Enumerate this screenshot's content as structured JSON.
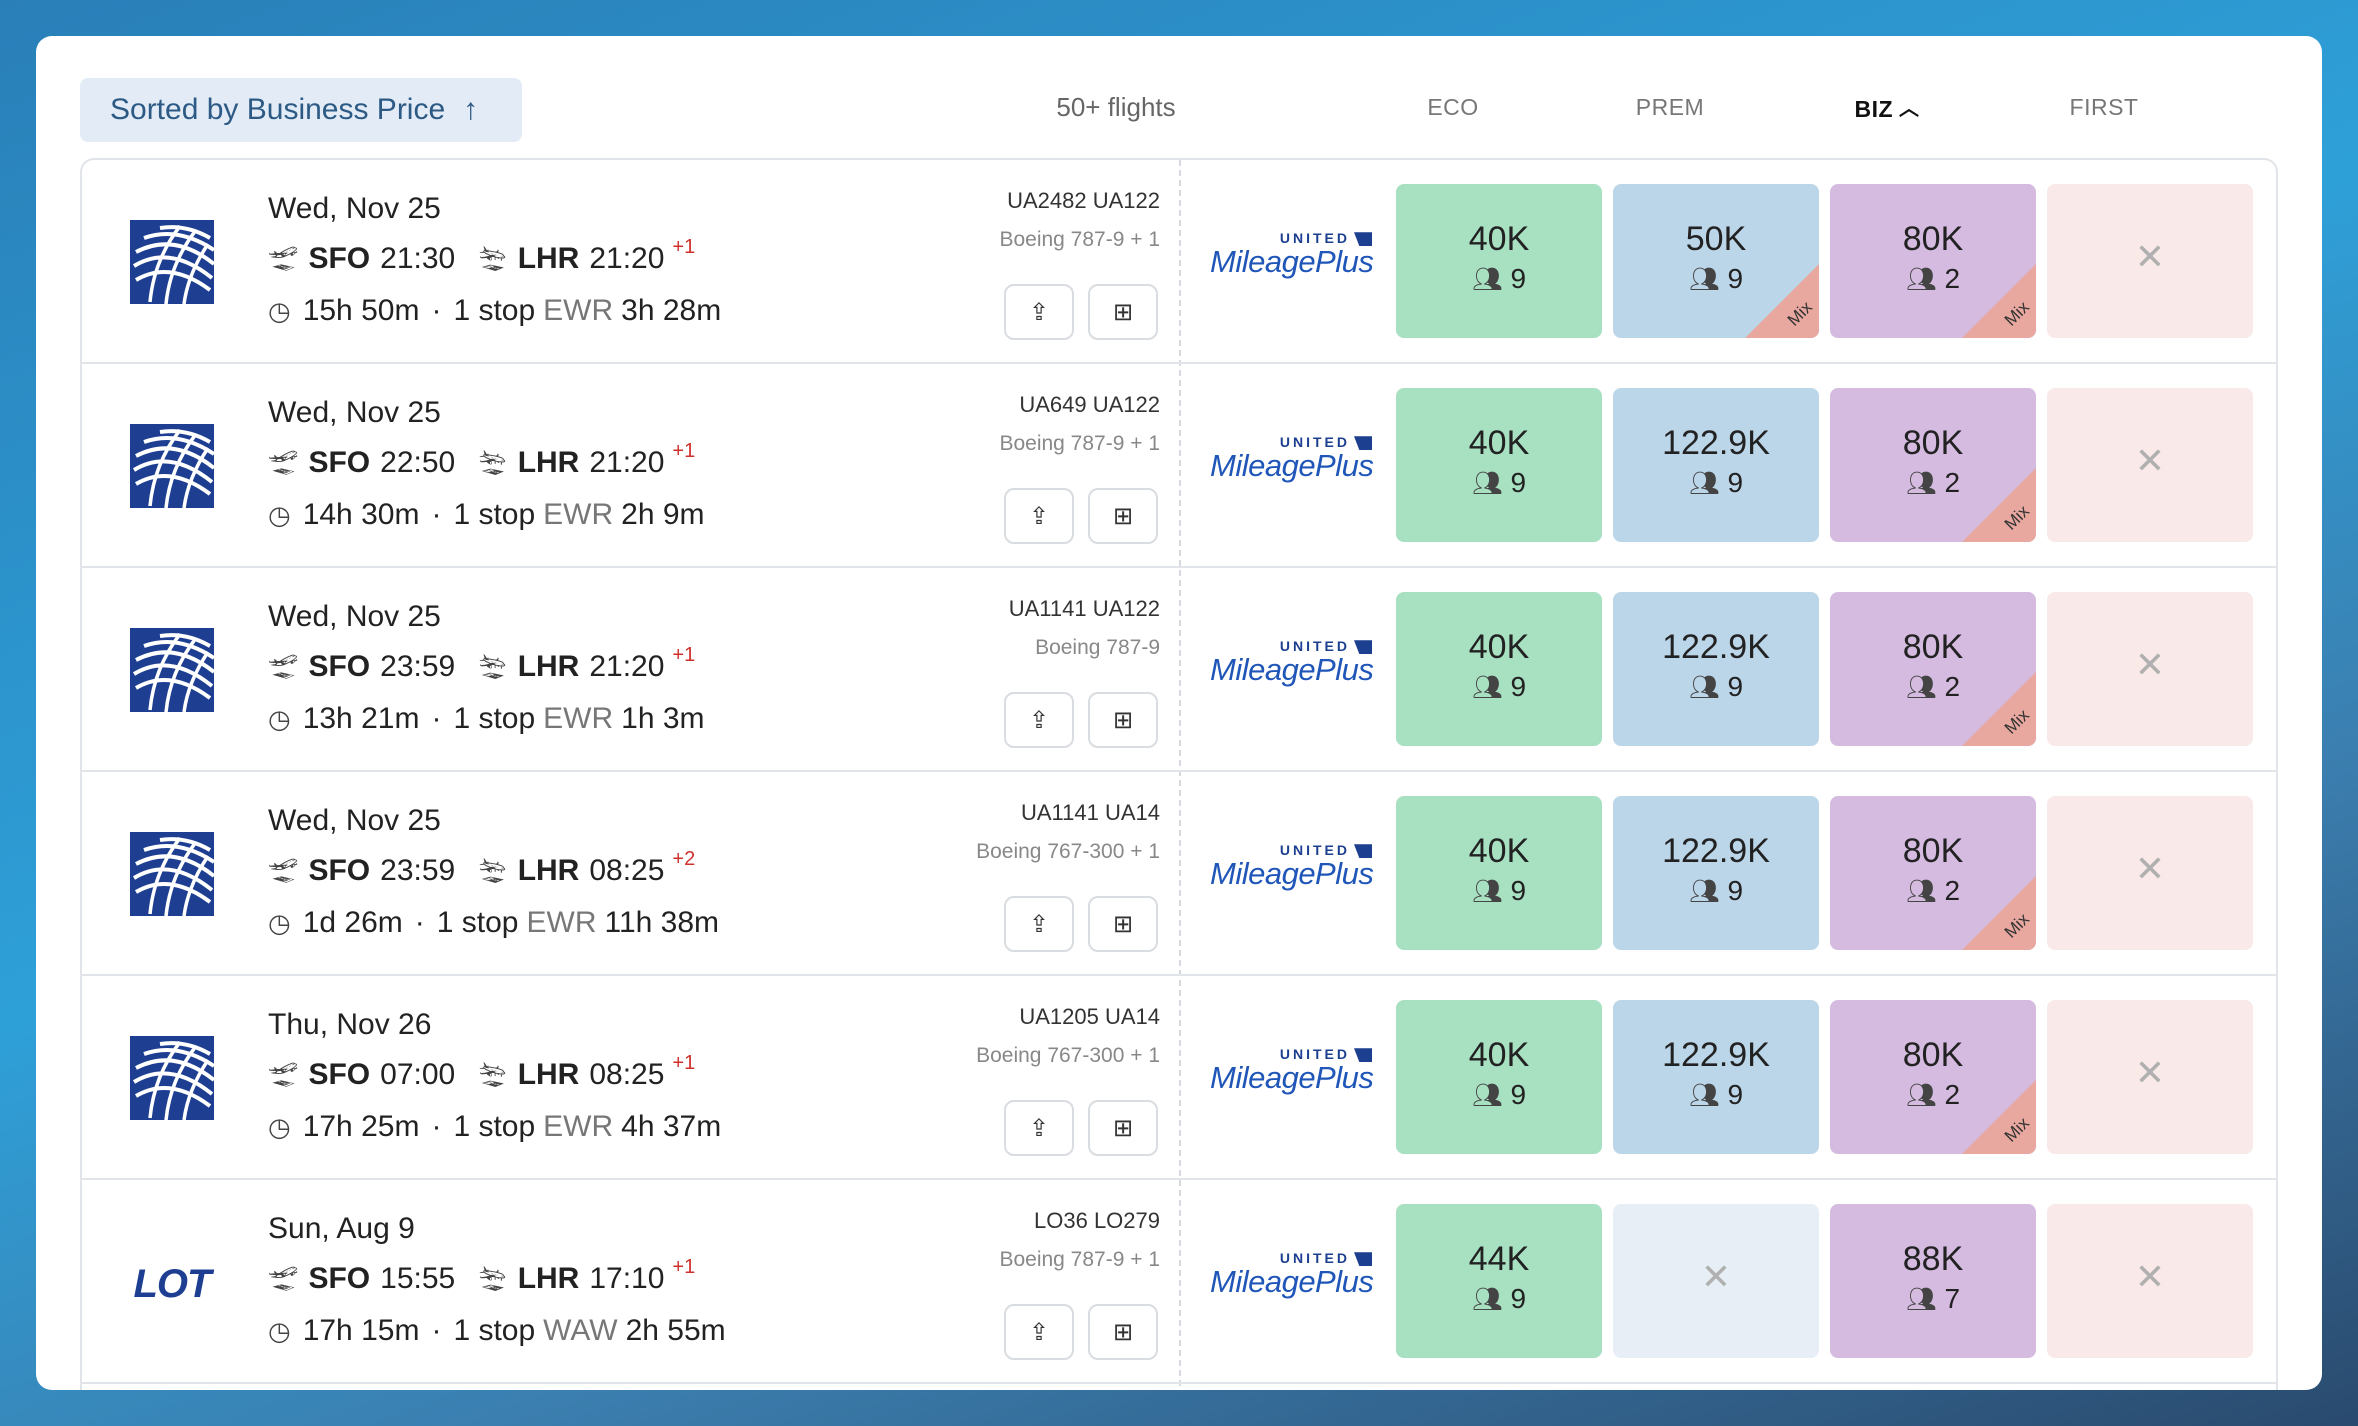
{
  "header": {
    "sort_label": "Sorted by Business Price",
    "sort_arrow": "↑",
    "flights_count": "50+ flights",
    "columns": [
      {
        "label": "ECO",
        "active": false
      },
      {
        "label": "PREM",
        "active": false
      },
      {
        "label": "BIZ",
        "active": true
      },
      {
        "label": "FIRST",
        "active": false
      }
    ]
  },
  "program": {
    "top": "UNITED",
    "main": "MileagePlus"
  },
  "flights": [
    {
      "airline_logo": "united-globe-icon",
      "date": "Wed, Nov 25",
      "origin": "SFO",
      "depart": "21:30",
      "dest": "LHR",
      "arrive": "21:20",
      "day_offset": "+1",
      "duration": "15h 50m",
      "stops": "1 stop",
      "via": "EWR",
      "layover": "3h 28m",
      "flight_numbers": "UA2482  UA122",
      "aircraft": "Boeing 787-9 + 1",
      "eco": {
        "price": "40K",
        "seats": "9",
        "mix": false
      },
      "prem": {
        "price": "50K",
        "seats": "9",
        "mix": true,
        "mix_label": "Mix"
      },
      "biz": {
        "price": "80K",
        "seats": "2",
        "mix": true,
        "mix_label": "Mix"
      },
      "first": {
        "available": false
      }
    },
    {
      "airline_logo": "united-globe-icon",
      "date": "Wed, Nov 25",
      "origin": "SFO",
      "depart": "22:50",
      "dest": "LHR",
      "arrive": "21:20",
      "day_offset": "+1",
      "duration": "14h 30m",
      "stops": "1 stop",
      "via": "EWR",
      "layover": "2h 9m",
      "flight_numbers": "UA649  UA122",
      "aircraft": "Boeing 787-9 + 1",
      "eco": {
        "price": "40K",
        "seats": "9",
        "mix": false
      },
      "prem": {
        "price": "122.9K",
        "seats": "9",
        "mix": false
      },
      "biz": {
        "price": "80K",
        "seats": "2",
        "mix": true,
        "mix_label": "Mix"
      },
      "first": {
        "available": false
      }
    },
    {
      "airline_logo": "united-globe-icon",
      "date": "Wed, Nov 25",
      "origin": "SFO",
      "depart": "23:59",
      "dest": "LHR",
      "arrive": "21:20",
      "day_offset": "+1",
      "duration": "13h 21m",
      "stops": "1 stop",
      "via": "EWR",
      "layover": "1h 3m",
      "flight_numbers": "UA1141  UA122",
      "aircraft": "Boeing 787-9",
      "eco": {
        "price": "40K",
        "seats": "9",
        "mix": false
      },
      "prem": {
        "price": "122.9K",
        "seats": "9",
        "mix": false
      },
      "biz": {
        "price": "80K",
        "seats": "2",
        "mix": true,
        "mix_label": "Mix"
      },
      "first": {
        "available": false
      }
    },
    {
      "airline_logo": "united-globe-icon",
      "date": "Wed, Nov 25",
      "origin": "SFO",
      "depart": "23:59",
      "dest": "LHR",
      "arrive": "08:25",
      "day_offset": "+2",
      "duration": "1d 26m",
      "stops": "1 stop",
      "via": "EWR",
      "layover": "11h 38m",
      "flight_numbers": "UA1141  UA14",
      "aircraft": "Boeing 767-300 + 1",
      "eco": {
        "price": "40K",
        "seats": "9",
        "mix": false
      },
      "prem": {
        "price": "122.9K",
        "seats": "9",
        "mix": false
      },
      "biz": {
        "price": "80K",
        "seats": "2",
        "mix": true,
        "mix_label": "Mix"
      },
      "first": {
        "available": false
      }
    },
    {
      "airline_logo": "united-globe-icon",
      "date": "Thu, Nov 26",
      "origin": "SFO",
      "depart": "07:00",
      "dest": "LHR",
      "arrive": "08:25",
      "day_offset": "+1",
      "duration": "17h 25m",
      "stops": "1 stop",
      "via": "EWR",
      "layover": "4h 37m",
      "flight_numbers": "UA1205  UA14",
      "aircraft": "Boeing 767-300 + 1",
      "eco": {
        "price": "40K",
        "seats": "9",
        "mix": false
      },
      "prem": {
        "price": "122.9K",
        "seats": "9",
        "mix": false
      },
      "biz": {
        "price": "80K",
        "seats": "2",
        "mix": true,
        "mix_label": "Mix"
      },
      "first": {
        "available": false
      }
    },
    {
      "airline_logo": "lot-logo",
      "airline_logo_text": "LOT",
      "date": "Sun, Aug 9",
      "origin": "SFO",
      "depart": "15:55",
      "dest": "LHR",
      "arrive": "17:10",
      "day_offset": "+1",
      "duration": "17h 15m",
      "stops": "1 stop",
      "via": "WAW",
      "layover": "2h 55m",
      "flight_numbers": "LO36  LO279",
      "aircraft": "Boeing 787-9 + 1",
      "eco": {
        "price": "44K",
        "seats": "9",
        "mix": false
      },
      "prem": {
        "available": false
      },
      "biz": {
        "price": "88K",
        "seats": "7",
        "mix": false
      },
      "first": {
        "available": false
      }
    }
  ]
}
